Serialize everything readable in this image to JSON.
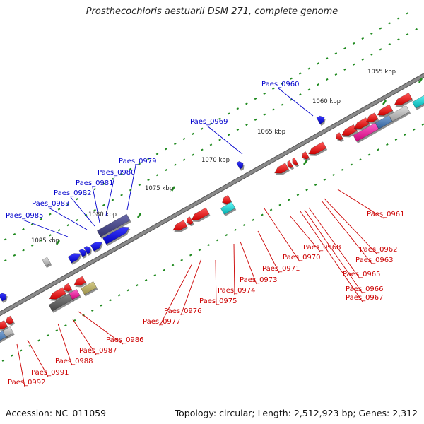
{
  "title": "Prosthecochloris aestuarii DSM 271, complete genome",
  "footer": {
    "accession": "Accession: NC_011059",
    "summary": "Topology: circular; Length: 2,512,923 bp; Genes: 2,312"
  },
  "colors": {
    "forward_label": "#0000cc",
    "reverse_label": "#cc0000",
    "backbone": "#8a8a8a",
    "tick": "#1f8a1f"
  },
  "scale_labels": [
    "1055 kbp",
    "1060 kbp",
    "1065 kbp",
    "1070 kbp",
    "1075 kbp",
    "1080 kbp",
    "1085 kbp"
  ],
  "forward_genes": [
    "Paes_0960",
    "Paes_0969",
    "Paes_0979",
    "Paes_0980",
    "Paes_0981",
    "Paes_0982",
    "Paes_0983",
    "Paes_0985"
  ],
  "reverse_genes": [
    "Paes_0961",
    "Paes_0962",
    "Paes_0963",
    "Paes_0965",
    "Paes_0966",
    "Paes_0967",
    "Paes_0968",
    "Paes_0970",
    "Paes_0971",
    "Paes_0973",
    "Paes_0974",
    "Paes_0975",
    "Paes_0976",
    "Paes_0977",
    "Paes_0986",
    "Paes_0987",
    "Paes_0988",
    "Paes_0991",
    "Paes_0992"
  ]
}
